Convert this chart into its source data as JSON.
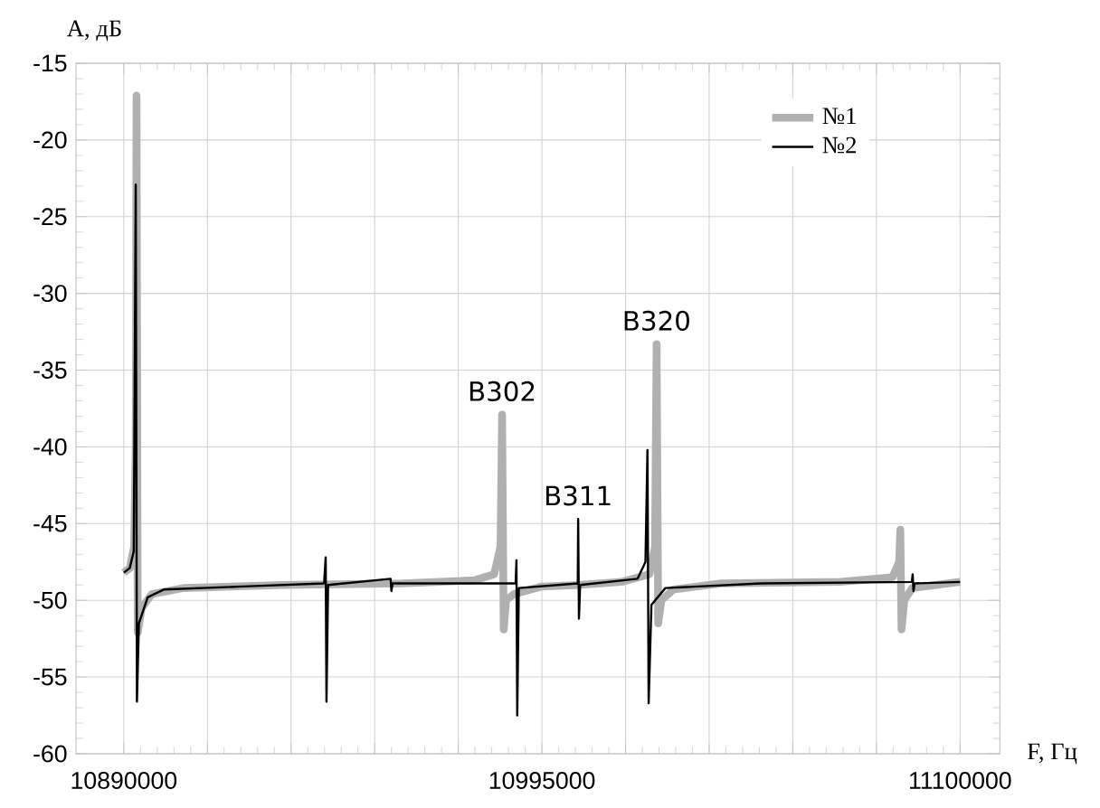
{
  "chart_data": {
    "type": "line",
    "xlabel": "F, Гц",
    "ylabel": "A, дБ",
    "xlim": [
      10878000,
      11110000
    ],
    "ylim": [
      -60,
      -15
    ],
    "xticks": [
      10890000,
      {
        "value": 10911000,
        "label": null
      },
      {
        "value": 10932000,
        "label": null
      },
      {
        "value": 10953000,
        "label": null
      },
      {
        "value": 10974000,
        "label": null
      },
      10995000,
      {
        "value": 11016000,
        "label": null
      },
      {
        "value": 11037000,
        "label": null
      },
      {
        "value": 11058000,
        "label": null
      },
      {
        "value": 11079000,
        "label": null
      },
      11100000
    ],
    "yticks": [
      -60,
      -55,
      -50,
      -45,
      -40,
      -35,
      -30,
      -25,
      -20,
      -15
    ],
    "grid": true,
    "legend": "top right",
    "marker": "none",
    "line_style": "solid",
    "series": [
      {
        "name": "№1",
        "color": "#b0b0b0",
        "x": [
          10890000,
          10891500,
          10892600,
          10893000,
          10893200,
          10893500,
          10894500,
          10897000,
          10905000,
          10930000,
          10960000,
          10978000,
          10983000,
          10984600,
          10985000,
          10985400,
          10986000,
          10988000,
          10995000,
          11004100,
          11015000,
          11022000,
          11023400,
          11023800,
          11024200,
          11025000,
          11028000,
          11040000,
          11070000,
          11083000,
          11084700,
          11085000,
          11085300,
          11086000,
          11088000,
          11100000
        ],
        "values": [
          -48.2,
          -47.9,
          -46.5,
          -40,
          -17.1,
          -52.1,
          -50.5,
          -49.6,
          -49.2,
          -49.0,
          -48.9,
          -48.7,
          -48.3,
          -46.5,
          -37.9,
          -51.9,
          -50.0,
          -49.6,
          -49.1,
          -49.0,
          -48.8,
          -48.3,
          -46.5,
          -33.3,
          -51.5,
          -50.0,
          -49.3,
          -48.9,
          -48.8,
          -48.5,
          -47.5,
          -45.4,
          -51.9,
          -50.0,
          -49.2,
          -48.8
        ]
      },
      {
        "name": "№2",
        "color": "#000000",
        "x": [
          10890000,
          10891500,
          10892500,
          10893000,
          10893300,
          10893800,
          10896000,
          10900000,
          10920000,
          10940300,
          10940700,
          10940900,
          10941300,
          10957000,
          10957200,
          10957500,
          10980000,
          10988400,
          10988600,
          10988800,
          10989200,
          11004000,
          11004100,
          11004300,
          11004600,
          11019000,
          11021000,
          11021500,
          11021800,
          11022500,
          11026000,
          11050000,
          11087900,
          11088100,
          11088300,
          11088600,
          11100000
        ],
        "values": [
          -48.2,
          -47.9,
          -46.8,
          -22.9,
          -56.6,
          -51.5,
          -49.8,
          -49.3,
          -49.1,
          -48.9,
          -47.2,
          -56.6,
          -49.0,
          -48.6,
          -49.4,
          -48.9,
          -48.9,
          -48.9,
          -47.4,
          -57.5,
          -49.2,
          -48.9,
          -44.7,
          -51.2,
          -49.0,
          -48.6,
          -47.5,
          -40.2,
          -56.7,
          -50.3,
          -49.2,
          -48.9,
          -48.8,
          -48.3,
          -49.4,
          -48.9,
          -48.8
        ]
      }
    ],
    "annotations": [
      {
        "text": "B302",
        "x": 10985000,
        "y": -37.9
      },
      {
        "text": "B311",
        "x": 11004100,
        "y": -44.7
      },
      {
        "text": "B320",
        "x": 11023800,
        "y": -33.3
      }
    ]
  }
}
